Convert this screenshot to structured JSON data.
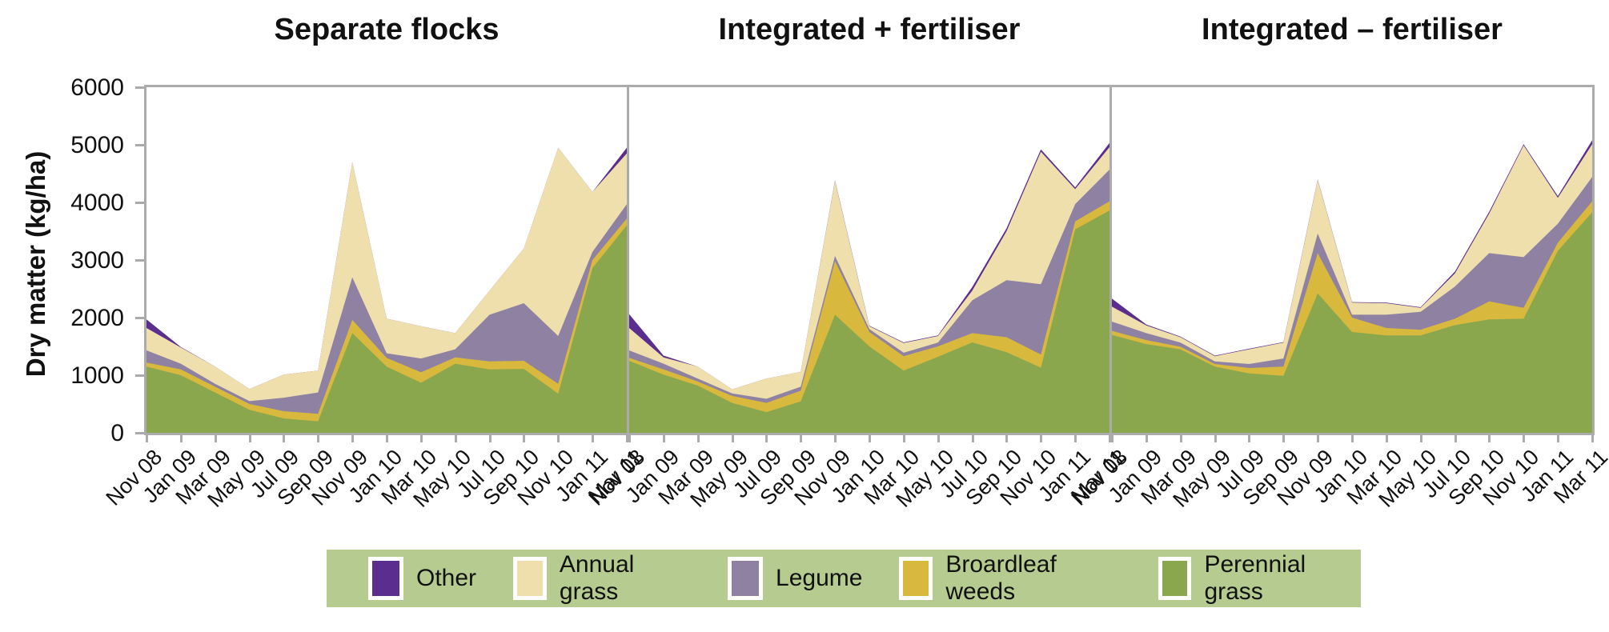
{
  "colors": {
    "perennial_grass": "#8BA74D",
    "broadleaf_weeds": "#D9B83E",
    "legume": "#8E81A1",
    "annual_grass": "#EEDFAD",
    "other": "#5A2D8F",
    "legend_background": "#B5CB90",
    "frame_gray": "#ABABAB"
  },
  "y_axis": {
    "label": "Dry matter (kg/ha)",
    "ticks": [
      0,
      1000,
      2000,
      3000,
      4000,
      5000,
      6000
    ],
    "min": 0,
    "max": 6000
  },
  "x_labels": [
    "Nov 08",
    "Jan 09",
    "Mar 09",
    "May 09",
    "Jul 09",
    "Sep 09",
    "Nov 09",
    "Jan 10",
    "Mar 10",
    "May 10",
    "Jul 10",
    "Sep 10",
    "Nov 10",
    "Jan 11",
    "Mar 11"
  ],
  "legend": {
    "items": [
      {
        "label": "Other",
        "color_key": "other"
      },
      {
        "label": "Annual grass",
        "color_key": "annual_grass"
      },
      {
        "label": "Legume",
        "color_key": "legume"
      },
      {
        "label": "Broardleaf weeds",
        "color_key": "broadleaf_weeds"
      },
      {
        "label": "Perennial grass",
        "color_key": "perennial_grass"
      }
    ]
  },
  "chart_data": [
    {
      "type": "area",
      "stacked": true,
      "title": "Separate flocks",
      "ylabel": "Dry matter (kg/ha)",
      "ylim": [
        0,
        6000
      ],
      "grid": false,
      "categories": [
        "Nov 08",
        "Jan 09",
        "Mar 09",
        "May 09",
        "Jul 09",
        "Sep 09",
        "Nov 09",
        "Jan 10",
        "Mar 10",
        "May 10",
        "Jul 10",
        "Sep 10",
        "Nov 10",
        "Jan 11",
        "Mar 11"
      ],
      "series": [
        {
          "name": "Perennial grass",
          "color_key": "perennial_grass",
          "values": [
            1150,
            1000,
            700,
            400,
            250,
            200,
            1730,
            1150,
            870,
            1200,
            1100,
            1110,
            680,
            2860,
            3600
          ]
        },
        {
          "name": "Broardleaf weeds",
          "color_key": "broadleaf_weeds",
          "values": [
            70,
            100,
            100,
            100,
            125,
            130,
            230,
            150,
            180,
            110,
            140,
            140,
            170,
            140,
            120
          ]
        },
        {
          "name": "Legume",
          "color_key": "legume",
          "values": [
            210,
            100,
            50,
            50,
            235,
            370,
            740,
            80,
            240,
            140,
            810,
            1000,
            830,
            140,
            250
          ]
        },
        {
          "name": "Annual grass",
          "color_key": "annual_grass",
          "values": [
            390,
            280,
            300,
            210,
            400,
            380,
            2000,
            600,
            560,
            280,
            420,
            950,
            3270,
            1040,
            880
          ]
        },
        {
          "name": "Other",
          "color_key": "other",
          "values": [
            150,
            10,
            0,
            0,
            0,
            0,
            0,
            0,
            0,
            0,
            0,
            0,
            0,
            0,
            100
          ]
        }
      ]
    },
    {
      "type": "area",
      "stacked": true,
      "title": "Integrated + fertiliser",
      "ylabel": "Dry matter (kg/ha)",
      "ylim": [
        0,
        6000
      ],
      "grid": false,
      "categories": [
        "Nov 08",
        "Jan 09",
        "Mar 09",
        "May 09",
        "Jul 09",
        "Sep 09",
        "Nov 09",
        "Jan 10",
        "Mar 10",
        "May 10",
        "Jul 10",
        "Sep 10",
        "Nov 10",
        "Jan 11",
        "Mar 11"
      ],
      "series": [
        {
          "name": "Perennial grass",
          "color_key": "perennial_grass",
          "values": [
            1250,
            1010,
            820,
            520,
            360,
            545,
            2050,
            1500,
            1080,
            1320,
            1570,
            1400,
            1130,
            3530,
            3860
          ]
        },
        {
          "name": "Broardleaf weeds",
          "color_key": "broadleaf_weeds",
          "values": [
            50,
            90,
            70,
            120,
            160,
            185,
            930,
            250,
            250,
            180,
            160,
            260,
            230,
            140,
            160
          ]
        },
        {
          "name": "Legume",
          "color_key": "legume",
          "values": [
            130,
            100,
            50,
            45,
            70,
            70,
            90,
            50,
            60,
            65,
            570,
            990,
            1220,
            300,
            550
          ]
        },
        {
          "name": "Annual grass",
          "color_key": "annual_grass",
          "values": [
            390,
            110,
            210,
            70,
            350,
            260,
            1300,
            50,
            170,
            115,
            170,
            850,
            2300,
            260,
            390
          ]
        },
        {
          "name": "Other",
          "color_key": "other",
          "values": [
            240,
            30,
            0,
            0,
            0,
            0,
            10,
            10,
            10,
            10,
            60,
            50,
            40,
            30,
            70
          ]
        }
      ]
    },
    {
      "type": "area",
      "stacked": true,
      "title": "Integrated – fertiliser",
      "ylabel": "Dry matter (kg/ha)",
      "ylim": [
        0,
        6000
      ],
      "grid": false,
      "categories": [
        "Nov 08",
        "Jan 09",
        "Mar 09",
        "May 09",
        "Jul 09",
        "Sep 09",
        "Nov 09",
        "Jan 10",
        "Mar 10",
        "May 10",
        "Jul 10",
        "Sep 10",
        "Nov 10",
        "Jan 11",
        "Mar 11"
      ],
      "series": [
        {
          "name": "Perennial grass",
          "color_key": "perennial_grass",
          "values": [
            1700,
            1540,
            1450,
            1150,
            1030,
            990,
            2420,
            1750,
            1690,
            1690,
            1870,
            1970,
            1980,
            3160,
            3830
          ]
        },
        {
          "name": "Broardleaf weeds",
          "color_key": "broadleaf_weeds",
          "values": [
            70,
            70,
            45,
            45,
            95,
            160,
            700,
            250,
            130,
            100,
            110,
            310,
            190,
            140,
            190
          ]
        },
        {
          "name": "Legume",
          "color_key": "legume",
          "values": [
            160,
            120,
            70,
            45,
            70,
            140,
            340,
            50,
            230,
            310,
            560,
            840,
            880,
            330,
            420
          ]
        },
        {
          "name": "Annual grass",
          "color_key": "annual_grass",
          "values": [
            260,
            135,
            95,
            90,
            255,
            275,
            930,
            210,
            200,
            70,
            230,
            690,
            1940,
            450,
            570
          ]
        },
        {
          "name": "Other",
          "color_key": "other",
          "values": [
            140,
            15,
            10,
            10,
            10,
            10,
            10,
            10,
            10,
            10,
            30,
            30,
            20,
            30,
            70
          ]
        }
      ]
    }
  ]
}
